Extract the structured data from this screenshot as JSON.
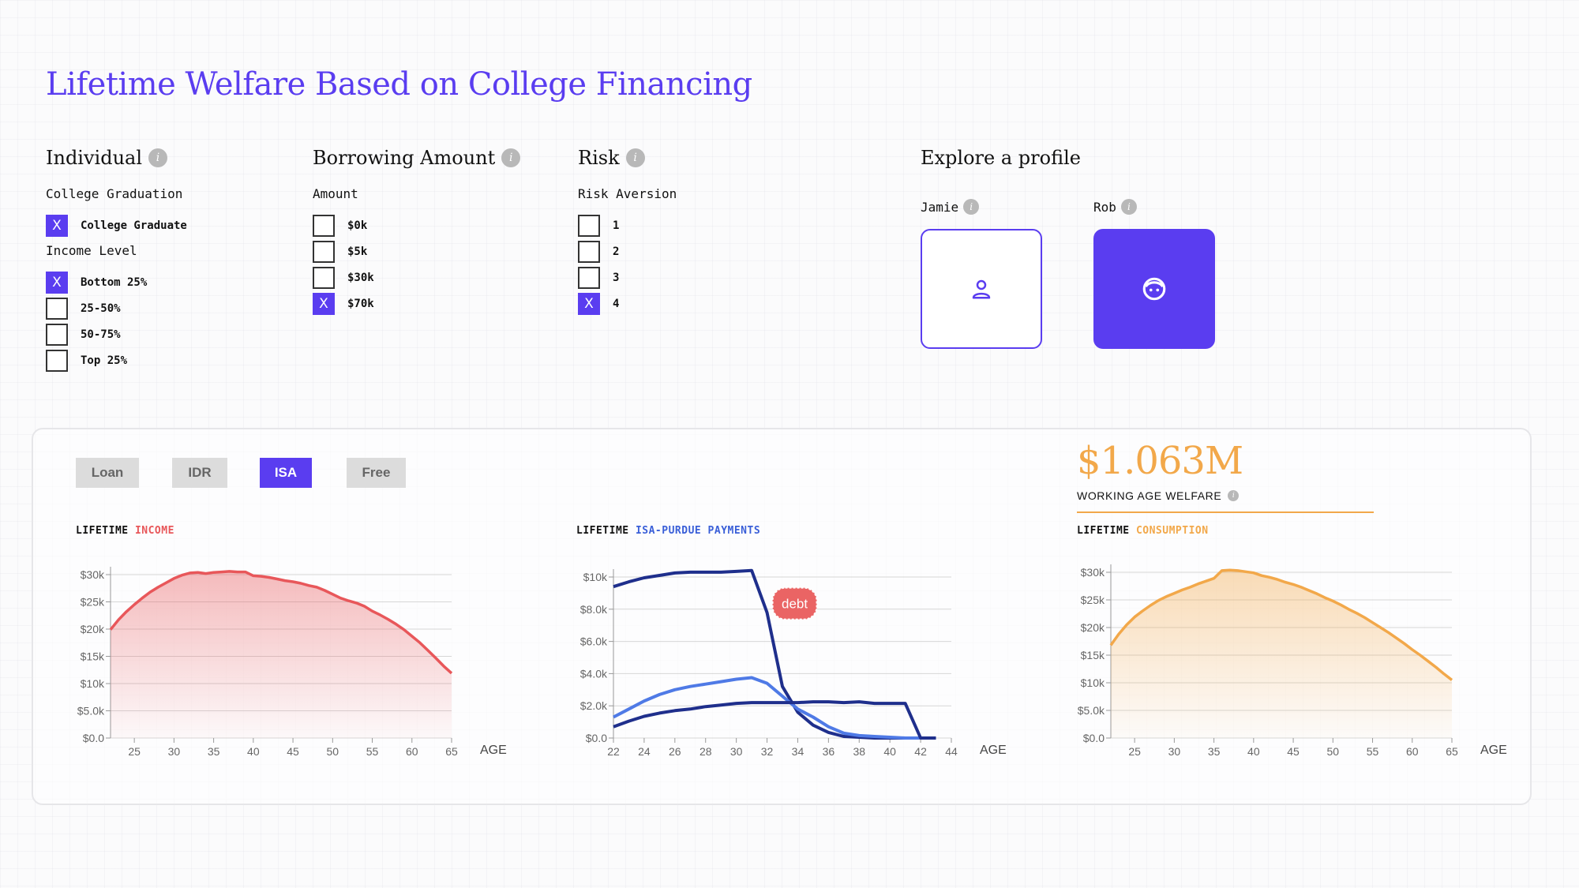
{
  "title": "Lifetime Welfare Based on College Financing",
  "sections": {
    "individual": {
      "heading": "Individual",
      "college_label": "College Graduation",
      "college_options": [
        {
          "label": "College Graduate",
          "checked": true
        }
      ],
      "income_label": "Income Level",
      "income_options": [
        {
          "label": "Bottom 25%",
          "checked": true
        },
        {
          "label": "25-50%",
          "checked": false
        },
        {
          "label": "50-75%",
          "checked": false
        },
        {
          "label": "Top 25%",
          "checked": false
        }
      ]
    },
    "borrowing": {
      "heading": "Borrowing Amount",
      "amount_label": "Amount",
      "options": [
        {
          "label": "$0k",
          "checked": false
        },
        {
          "label": "$5k",
          "checked": false
        },
        {
          "label": "$30k",
          "checked": false
        },
        {
          "label": "$70k",
          "checked": true
        }
      ]
    },
    "risk": {
      "heading": "Risk",
      "aversion_label": "Risk Aversion",
      "options": [
        {
          "label": "1",
          "checked": false
        },
        {
          "label": "2",
          "checked": false
        },
        {
          "label": "3",
          "checked": false
        },
        {
          "label": "4",
          "checked": true
        }
      ]
    },
    "profile": {
      "heading": "Explore a profile",
      "profiles": [
        {
          "name": "Jamie",
          "selected": false,
          "icon": "person-icon"
        },
        {
          "name": "Rob",
          "selected": true,
          "icon": "face-icon"
        }
      ]
    }
  },
  "check_mark": "X",
  "info_glyph": "i",
  "tabs": [
    {
      "label": "Loan",
      "active": false
    },
    {
      "label": "IDR",
      "active": false
    },
    {
      "label": "ISA",
      "active": true
    },
    {
      "label": "Free",
      "active": false
    }
  ],
  "welfare": {
    "value": "$1.063M",
    "label": "WORKING AGE WELFARE"
  },
  "colors": {
    "accent": "#5a3df0",
    "income": "#e8575a",
    "consumption": "#f2a84a",
    "payment_dark": "#1f2f8c",
    "payment_light": "#4f7ae6",
    "debt_badge": "#ea6464"
  },
  "chart_data": [
    {
      "type": "area",
      "title_prefix": "LIFETIME ",
      "title_highlight": "INCOME",
      "xlabel": "AGE",
      "xlim": [
        22,
        65
      ],
      "ylim": [
        0,
        30000
      ],
      "x_ticks": [
        25,
        30,
        35,
        40,
        45,
        50,
        55,
        60,
        65
      ],
      "y_ticks": [
        {
          "v": 0,
          "label": "$0.0"
        },
        {
          "v": 5000,
          "label": "$5.0k"
        },
        {
          "v": 10000,
          "label": "$10k"
        },
        {
          "v": 15000,
          "label": "$15k"
        },
        {
          "v": 20000,
          "label": "$20k"
        },
        {
          "v": 25000,
          "label": "$25k"
        },
        {
          "v": 30000,
          "label": "$30k"
        }
      ],
      "x": [
        22,
        23,
        24,
        25,
        26,
        27,
        28,
        29,
        30,
        31,
        32,
        33,
        34,
        35,
        36,
        37,
        38,
        39,
        40,
        41,
        42,
        43,
        44,
        45,
        46,
        47,
        48,
        49,
        50,
        51,
        52,
        53,
        54,
        55,
        56,
        57,
        58,
        59,
        60,
        61,
        62,
        63,
        64,
        65
      ],
      "y": [
        19900,
        21700,
        23200,
        24500,
        25700,
        26800,
        27700,
        28500,
        29300,
        29900,
        30300,
        30400,
        30200,
        30400,
        30500,
        30600,
        30500,
        30500,
        29800,
        29700,
        29500,
        29200,
        28900,
        28700,
        28400,
        28000,
        27700,
        27100,
        26400,
        25700,
        25200,
        24800,
        24200,
        23300,
        22600,
        21800,
        20900,
        19900,
        18700,
        17500,
        16100,
        14700,
        13200,
        11900
      ],
      "color": "#e8575a"
    },
    {
      "type": "line",
      "title_prefix": "LIFETIME ",
      "title_highlight": "ISA-PURDUE PAYMENTS",
      "xlabel": "AGE",
      "xlim": [
        22,
        44
      ],
      "ylim": [
        0,
        10000
      ],
      "x_ticks": [
        22,
        24,
        26,
        28,
        30,
        32,
        34,
        36,
        38,
        40,
        42,
        44
      ],
      "y_ticks": [
        {
          "v": 0,
          "label": "$0.0"
        },
        {
          "v": 2000,
          "label": "$2.0k"
        },
        {
          "v": 4000,
          "label": "$4.0k"
        },
        {
          "v": 6000,
          "label": "$6.0k"
        },
        {
          "v": 8000,
          "label": "$8.0k"
        },
        {
          "v": 10000,
          "label": "$10k"
        }
      ],
      "annotation": {
        "text": "debt",
        "x": 33.8,
        "y": 8350
      },
      "series": [
        {
          "color": "#1f2f8c",
          "x": [
            22,
            23,
            24,
            25,
            26,
            27,
            28,
            29,
            30,
            31,
            32,
            33,
            34,
            35,
            36,
            37,
            38,
            39,
            40,
            41,
            42,
            43
          ],
          "y": [
            9400,
            9700,
            9950,
            10100,
            10250,
            10300,
            10300,
            10300,
            10350,
            10400,
            7800,
            3200,
            1600,
            800,
            350,
            100,
            50,
            0,
            0,
            0,
            0,
            0
          ]
        },
        {
          "color": "#4f7ae6",
          "x": [
            22,
            23,
            24,
            25,
            26,
            27,
            28,
            29,
            30,
            31,
            32,
            33,
            34,
            35,
            36,
            37,
            38,
            39,
            40,
            41,
            42,
            43
          ],
          "y": [
            1300,
            1800,
            2300,
            2700,
            3000,
            3200,
            3350,
            3500,
            3650,
            3750,
            3400,
            2600,
            1800,
            1300,
            700,
            300,
            150,
            100,
            50,
            0,
            0,
            0
          ]
        },
        {
          "color": "#1f2f8c",
          "x": [
            22,
            23,
            24,
            25,
            26,
            27,
            28,
            29,
            30,
            31,
            32,
            33,
            34,
            35,
            36,
            37,
            38,
            39,
            40,
            41,
            42,
            43
          ],
          "y": [
            700,
            1050,
            1350,
            1550,
            1700,
            1800,
            1950,
            2050,
            2150,
            2200,
            2200,
            2200,
            2200,
            2250,
            2250,
            2200,
            2250,
            2150,
            2150,
            2150,
            0,
            0
          ]
        }
      ]
    },
    {
      "type": "area",
      "title_prefix": "LIFETIME ",
      "title_highlight": "CONSUMPTION",
      "xlabel": "AGE",
      "xlim": [
        22,
        65
      ],
      "ylim": [
        0,
        30000
      ],
      "x_ticks": [
        25,
        30,
        35,
        40,
        45,
        50,
        55,
        60,
        65
      ],
      "y_ticks": [
        {
          "v": 0,
          "label": "$0.0"
        },
        {
          "v": 5000,
          "label": "$5.0k"
        },
        {
          "v": 10000,
          "label": "$10k"
        },
        {
          "v": 15000,
          "label": "$15k"
        },
        {
          "v": 20000,
          "label": "$20k"
        },
        {
          "v": 25000,
          "label": "$25k"
        },
        {
          "v": 30000,
          "label": "$30k"
        }
      ],
      "x": [
        22,
        23,
        24,
        25,
        26,
        27,
        28,
        29,
        30,
        31,
        32,
        33,
        34,
        35,
        36,
        37,
        38,
        39,
        40,
        41,
        42,
        43,
        44,
        45,
        46,
        47,
        48,
        49,
        50,
        51,
        52,
        53,
        54,
        55,
        56,
        57,
        58,
        59,
        60,
        61,
        62,
        63,
        64,
        65
      ],
      "y": [
        16800,
        18800,
        20500,
        21900,
        23000,
        24000,
        24900,
        25600,
        26200,
        26800,
        27300,
        27900,
        28400,
        28900,
        30300,
        30400,
        30300,
        30100,
        29900,
        29400,
        29100,
        28700,
        28200,
        27800,
        27300,
        26700,
        26100,
        25400,
        24800,
        24100,
        23300,
        22600,
        21800,
        20900,
        20000,
        19100,
        18100,
        17100,
        16000,
        15000,
        13900,
        12800,
        11600,
        10500
      ],
      "color": "#f2a84a"
    }
  ]
}
